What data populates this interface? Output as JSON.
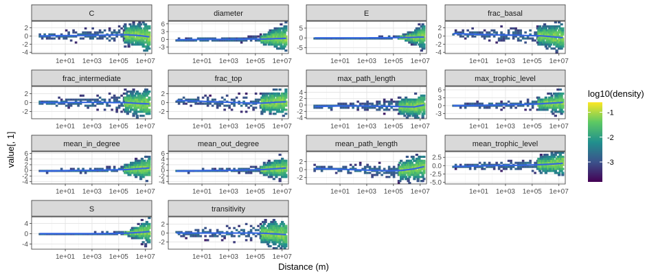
{
  "chart_data": {
    "type": "heatmap",
    "xlabel": "Distance (m)",
    "ylabel": "value[, 1]",
    "x_scale": "log10",
    "x_ticks": [
      "1e+01",
      "1e+03",
      "1e+05",
      "1e+07"
    ],
    "x_tick_values": [
      10,
      1000,
      100000,
      10000000
    ],
    "xlim": [
      0.03,
      30000000
    ],
    "grid": true,
    "smooth_color": "#3366e0",
    "legend": {
      "title": "log10(density)",
      "placement": "right",
      "ticks": [
        "-1",
        "-2",
        "-3"
      ],
      "tick_values": [
        -1,
        -2,
        -3
      ],
      "range": [
        -3.8,
        -0.6
      ],
      "colormap": "viridis"
    },
    "panels": [
      {
        "name": "C",
        "ylim": [
          -4.3,
          3.6
        ],
        "y_ticks": [
          "2",
          "0",
          "-2",
          "-4"
        ],
        "y_tick_values": [
          2,
          0,
          -2,
          -4
        ],
        "spread": [
          0.4,
          0.7,
          0.9,
          1.1,
          1.3,
          1.5,
          1.7,
          2.0,
          2.6,
          3.6
        ],
        "trend": [
          0,
          0.05,
          0.1,
          0.1,
          0.15,
          0.2,
          0.25,
          0.3,
          0.1,
          -0.3
        ]
      },
      {
        "name": "diameter",
        "ylim": [
          -5.5,
          7
        ],
        "y_ticks": [
          "6",
          "3",
          "0",
          "-3"
        ],
        "y_tick_values": [
          6,
          3,
          0,
          -3
        ],
        "spread": [
          0.2,
          0.3,
          0.4,
          0.5,
          0.6,
          0.8,
          1.0,
          1.5,
          3.5,
          5.0
        ],
        "trend": [
          -0.2,
          -0.1,
          -0.05,
          0,
          0,
          0.05,
          0.1,
          0.1,
          0.3,
          0.4
        ]
      },
      {
        "name": "E",
        "ylim": [
          -8,
          8.5
        ],
        "y_ticks": [
          "5",
          "0",
          "-5"
        ],
        "y_tick_values": [
          5,
          0,
          -5
        ],
        "spread": [
          0.1,
          0.1,
          0.2,
          0.2,
          0.2,
          0.3,
          0.4,
          0.6,
          3.0,
          6.5
        ],
        "trend": [
          0,
          0,
          0,
          0,
          0,
          0.05,
          0.1,
          0.2,
          0.3,
          0.5
        ]
      },
      {
        "name": "frac_basal",
        "ylim": [
          -4.3,
          3.6
        ],
        "y_ticks": [
          "2",
          "0",
          "-2",
          "-4"
        ],
        "y_tick_values": [
          2,
          0,
          -2,
          -4
        ],
        "spread": [
          0.5,
          0.8,
          1.0,
          1.2,
          1.4,
          1.6,
          1.8,
          2.0,
          2.5,
          3.2
        ],
        "trend": [
          0.6,
          0.5,
          0.4,
          0.3,
          0.25,
          0.2,
          0.1,
          0.05,
          -0.2,
          -0.5
        ]
      },
      {
        "name": "frac_intermediate",
        "ylim": [
          -3.6,
          3.6
        ],
        "y_ticks": [
          "2",
          "0",
          "-2"
        ],
        "y_tick_values": [
          2,
          0,
          -2
        ],
        "spread": [
          0.4,
          0.7,
          0.9,
          1.1,
          1.2,
          1.4,
          1.6,
          1.8,
          2.4,
          3.2
        ],
        "trend": [
          0,
          0,
          0,
          0.05,
          0.05,
          0.05,
          0,
          0,
          -0.2,
          -0.3
        ]
      },
      {
        "name": "frac_top",
        "ylim": [
          -3.6,
          3.6
        ],
        "y_ticks": [
          "2",
          "0",
          "-2"
        ],
        "y_tick_values": [
          2,
          0,
          -2
        ],
        "spread": [
          0.5,
          0.8,
          1.0,
          1.2,
          1.3,
          1.5,
          1.6,
          1.8,
          2.3,
          3.0
        ],
        "trend": [
          0.5,
          0.4,
          0.3,
          0.2,
          0.1,
          0,
          -0.1,
          -0.1,
          0.1,
          0.2
        ]
      },
      {
        "name": "max_path_length",
        "ylim": [
          -4.3,
          5.8
        ],
        "y_ticks": [
          "4",
          "2",
          "0",
          "-2",
          "-4"
        ],
        "y_tick_values": [
          4,
          2,
          0,
          -2,
          -4
        ],
        "spread": [
          0.3,
          0.5,
          0.8,
          1.0,
          1.3,
          1.5,
          1.8,
          2.2,
          3.0,
          4.0
        ],
        "trend": [
          -0.5,
          -0.4,
          -0.3,
          -0.3,
          -0.3,
          -0.4,
          -0.4,
          -0.5,
          -0.6,
          0.2
        ]
      },
      {
        "name": "max_trophic_level",
        "ylim": [
          -5,
          7.3
        ],
        "y_ticks": [
          "6",
          "3",
          "0",
          "-3"
        ],
        "y_tick_values": [
          6,
          3,
          0,
          -3
        ],
        "spread": [
          0.4,
          0.6,
          0.8,
          1.0,
          1.2,
          1.4,
          1.6,
          2.0,
          3.0,
          4.5
        ],
        "trend": [
          0,
          0,
          0.1,
          0.2,
          0.3,
          0.4,
          0.5,
          0.7,
          1.0,
          1.3
        ]
      },
      {
        "name": "mean_in_degree",
        "ylim": [
          -4.8,
          6.6
        ],
        "y_ticks": [
          "6",
          "4",
          "2",
          "0",
          "-2",
          "-4"
        ],
        "y_tick_values": [
          6,
          4,
          2,
          0,
          -2,
          -4
        ],
        "spread": [
          0.2,
          0.3,
          0.4,
          0.5,
          0.6,
          0.8,
          1.0,
          1.4,
          2.8,
          4.0
        ],
        "trend": [
          -0.3,
          -0.2,
          -0.1,
          0,
          0,
          0.1,
          0.2,
          0.3,
          0.6,
          0.9
        ]
      },
      {
        "name": "mean_out_degree",
        "ylim": [
          -4.8,
          6.6
        ],
        "y_ticks": [
          "6",
          "4",
          "2",
          "0",
          "-2",
          "-4"
        ],
        "y_tick_values": [
          6,
          4,
          2,
          0,
          -2,
          -4
        ],
        "spread": [
          0.2,
          0.3,
          0.4,
          0.5,
          0.6,
          0.8,
          1.0,
          1.4,
          2.8,
          4.0
        ],
        "trend": [
          -0.3,
          -0.2,
          -0.1,
          0,
          0,
          0.1,
          0.2,
          0.3,
          0.6,
          0.9
        ]
      },
      {
        "name": "mean_path_length",
        "ylim": [
          -3.6,
          4.5
        ],
        "y_ticks": [
          "2",
          "0",
          "-2"
        ],
        "y_tick_values": [
          2,
          0,
          -2
        ],
        "spread": [
          0.5,
          0.7,
          0.9,
          1.1,
          1.3,
          1.5,
          1.8,
          2.2,
          2.6,
          3.0
        ],
        "trend": [
          0.3,
          0.2,
          0.1,
          0,
          -0.1,
          -0.2,
          -0.3,
          -0.2,
          0.2,
          0.9
        ]
      },
      {
        "name": "mean_trophic_level",
        "ylim": [
          -5.5,
          4.2
        ],
        "y_ticks": [
          "2.5",
          "0.0",
          "-2.5",
          "-5.0"
        ],
        "y_tick_values": [
          2.5,
          0,
          -2.5,
          -5
        ],
        "spread": [
          0.4,
          0.6,
          0.8,
          1.0,
          1.2,
          1.4,
          1.6,
          1.9,
          2.6,
          3.5
        ],
        "trend": [
          -0.2,
          -0.2,
          -0.1,
          0,
          0.1,
          0.1,
          0.2,
          0.3,
          0.5,
          0.8
        ]
      },
      {
        "name": "S",
        "ylim": [
          -6,
          6.5
        ],
        "y_ticks": [
          "4",
          "0",
          "-4"
        ],
        "y_tick_values": [
          4,
          0,
          -4
        ],
        "spread": [
          0.1,
          0.1,
          0.2,
          0.2,
          0.3,
          0.3,
          0.4,
          0.6,
          2.5,
          5.0
        ],
        "trend": [
          0,
          0,
          0,
          0,
          0,
          0.05,
          0.1,
          0.2,
          0.5,
          0.9
        ]
      },
      {
        "name": "transitivity",
        "ylim": [
          -3.6,
          3.6
        ],
        "y_ticks": [
          "2",
          "0",
          "-2"
        ],
        "y_tick_values": [
          2,
          0,
          -2
        ],
        "spread": [
          0.5,
          0.8,
          1.0,
          1.2,
          1.4,
          1.6,
          1.8,
          2.0,
          2.5,
          3.2
        ],
        "trend": [
          0,
          0,
          0,
          0,
          0,
          0,
          0,
          -0.05,
          -0.2,
          -0.4
        ]
      }
    ]
  }
}
